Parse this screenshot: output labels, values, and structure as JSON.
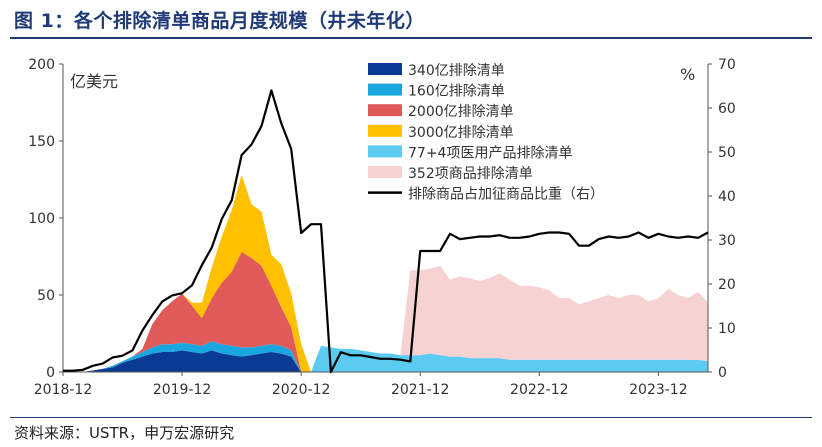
{
  "title": "图 1：各个排除清单商品月度规模（井未年化）",
  "source": "资料来源：USTR，申万宏源研究",
  "chart_data": {
    "type": "area",
    "left_axis": {
      "unit_label": "亿美元",
      "ticks": [
        0,
        50,
        100,
        150,
        200
      ],
      "ylim": [
        0,
        200
      ]
    },
    "right_axis": {
      "unit_label": "%",
      "ticks": [
        0,
        10,
        20,
        30,
        40,
        50,
        60,
        70
      ],
      "ylim": [
        0,
        70
      ]
    },
    "x_ticks": [
      "2018-12",
      "2019-12",
      "2020-12",
      "2021-12",
      "2022-12",
      "2023-12"
    ],
    "x_start_index": 0,
    "x_end_index": 65,
    "x_tick_index": [
      0,
      12,
      24,
      36,
      48,
      60
    ],
    "stack_series": [
      {
        "name": "340亿排除清单",
        "color": "#0b3a94",
        "start": 0,
        "values": [
          0,
          0,
          0,
          1,
          2,
          3,
          6,
          8,
          10,
          12,
          13,
          13,
          14,
          13,
          12,
          14,
          12,
          11,
          10,
          11,
          12,
          13,
          12,
          10,
          0
        ]
      },
      {
        "name": "160亿排除清单",
        "color": "#1aa7e0",
        "start": 0,
        "values": [
          0,
          0,
          0,
          0,
          0,
          1,
          1,
          2,
          3,
          4,
          5,
          5,
          5,
          5,
          5,
          6,
          6,
          6,
          6,
          5,
          5,
          5,
          5,
          4,
          0
        ]
      },
      {
        "name": "2000亿排除清单",
        "color": "#e05a5a",
        "start": 0,
        "values": [
          0,
          0,
          0,
          0,
          0,
          0,
          0,
          0,
          2,
          15,
          22,
          28,
          32,
          25,
          18,
          28,
          40,
          48,
          62,
          58,
          52,
          38,
          25,
          15,
          0
        ]
      },
      {
        "name": "3000亿排除清单",
        "color": "#ffc000",
        "start": 0,
        "values": [
          0,
          0,
          0,
          0,
          0,
          0,
          0,
          0,
          0,
          0,
          0,
          0,
          0,
          0,
          0,
          0,
          0,
          0,
          0,
          0,
          0,
          0,
          0,
          0,
          0
        ]
      },
      {
        "name": "77+4项医用产品排除清单",
        "color": "#5ccbf2",
        "start": 25,
        "values": [
          0,
          17,
          16,
          15,
          15,
          14,
          13,
          12,
          12,
          11,
          11,
          11,
          12,
          11,
          10,
          10,
          9,
          9,
          9,
          9,
          8,
          8,
          8,
          8,
          8,
          8,
          8,
          8,
          8,
          8,
          8,
          8,
          8,
          8,
          8,
          8,
          8,
          8,
          8,
          8,
          7
        ]
      },
      {
        "name": "352项商品排除清单",
        "color": "#f6d2d2",
        "start": 35,
        "values": [
          55,
          55,
          55,
          58,
          50,
          52,
          52,
          50,
          52,
          55,
          52,
          48,
          48,
          47,
          45,
          40,
          40,
          36,
          38,
          40,
          42,
          40,
          42,
          42,
          38,
          40,
          46,
          42,
          40,
          44,
          38,
          42
        ]
      },
      {
        "name": "排除商品占加征商品比重（右）",
        "color": "#000000",
        "type": "line",
        "axis": "right"
      }
    ],
    "ratio_series": {
      "name": "排除商品占加征商品比重（右）",
      "values": [
        0.3,
        0.3,
        0.5,
        1.4,
        1.9,
        3.3,
        3.7,
        4.9,
        9.4,
        12.9,
        16,
        17.4,
        17.9,
        19.7,
        24.3,
        28.3,
        34.8,
        39,
        49.3,
        51.7,
        55.9,
        64,
        56.5,
        50.7,
        31.6,
        33.6,
        33.6,
        0,
        4.5,
        3.8,
        3.8,
        3.4,
        3.0,
        3.0,
        2.8,
        2.4,
        27.5,
        27.5,
        27.5,
        31.4,
        30.2,
        30.5,
        30.8,
        30.8,
        31.1,
        30.5,
        30.5,
        30.8,
        31.4,
        31.7,
        31.7,
        31.4,
        28.7,
        28.7,
        30.2,
        30.8,
        30.5,
        30.8,
        31.7,
        30.5,
        31.4,
        30.8,
        30.5,
        30.8,
        30.5,
        31.7
      ]
    },
    "yellow_series_extra": {
      "name": "3000亿排除清单",
      "start": 9,
      "values": [
        0,
        0,
        0,
        0,
        2,
        10,
        20,
        30,
        40,
        50,
        35,
        35,
        20,
        28,
        22,
        18
      ]
    }
  }
}
